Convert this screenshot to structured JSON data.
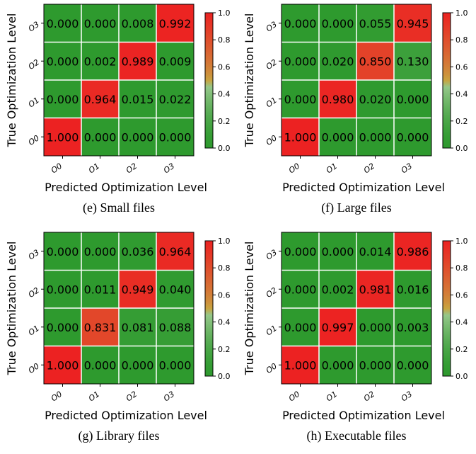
{
  "chart_data": [
    {
      "type": "heatmap",
      "caption": "(e) Small files",
      "xlabel": "Predicted Optimization Level",
      "ylabel": "True Optimization Level",
      "x_categories": [
        "O0",
        "O1",
        "O2",
        "O3"
      ],
      "y_categories": [
        "O3",
        "O2",
        "O1",
        "O0"
      ],
      "values": [
        [
          0.0,
          0.0,
          0.008,
          0.992
        ],
        [
          0.0,
          0.002,
          0.989,
          0.009
        ],
        [
          0.0,
          0.964,
          0.015,
          0.022
        ],
        [
          1.0,
          0.0,
          0.0,
          0.0
        ]
      ],
      "colorbar_ticks": [
        "0.0",
        "0.2",
        "0.4",
        "0.6",
        "0.8",
        "1.0"
      ],
      "vmin": 0,
      "vmax": 1
    },
    {
      "type": "heatmap",
      "caption": "(f) Large files",
      "xlabel": "Predicted Optimization Level",
      "ylabel": "True Optimization Level",
      "x_categories": [
        "O0",
        "O1",
        "O2",
        "O3"
      ],
      "y_categories": [
        "O3",
        "O2",
        "O1",
        "O0"
      ],
      "values": [
        [
          0.0,
          0.0,
          0.055,
          0.945
        ],
        [
          0.0,
          0.02,
          0.85,
          0.13
        ],
        [
          0.0,
          0.98,
          0.02,
          0.0
        ],
        [
          1.0,
          0.0,
          0.0,
          0.0
        ]
      ],
      "colorbar_ticks": [
        "0.0",
        "0.2",
        "0.4",
        "0.6",
        "0.8",
        "1.0"
      ],
      "vmin": 0,
      "vmax": 1
    },
    {
      "type": "heatmap",
      "caption": "(g) Library files",
      "xlabel": "Predicted Optimization Level",
      "ylabel": "True Optimization Level",
      "x_categories": [
        "O0",
        "O1",
        "O2",
        "O3"
      ],
      "y_categories": [
        "O3",
        "O2",
        "O1",
        "O0"
      ],
      "values": [
        [
          0.0,
          0.0,
          0.036,
          0.964
        ],
        [
          0.0,
          0.011,
          0.949,
          0.04
        ],
        [
          0.0,
          0.831,
          0.081,
          0.088
        ],
        [
          1.0,
          0.0,
          0.0,
          0.0
        ]
      ],
      "colorbar_ticks": [
        "0.0",
        "0.2",
        "0.4",
        "0.6",
        "0.8",
        "1.0"
      ],
      "vmin": 0,
      "vmax": 1
    },
    {
      "type": "heatmap",
      "caption": "(h) Executable files",
      "xlabel": "Predicted Optimization Level",
      "ylabel": "True Optimization Level",
      "x_categories": [
        "O0",
        "O1",
        "O2",
        "O3"
      ],
      "y_categories": [
        "O3",
        "O2",
        "O1",
        "O0"
      ],
      "values": [
        [
          0.0,
          0.0,
          0.014,
          0.986
        ],
        [
          0.0,
          0.002,
          0.981,
          0.016
        ],
        [
          0.0,
          0.997,
          0.0,
          0.003
        ],
        [
          1.0,
          0.0,
          0.0,
          0.0
        ]
      ],
      "colorbar_ticks": [
        "0.0",
        "0.2",
        "0.4",
        "0.6",
        "0.8",
        "1.0"
      ],
      "vmin": 0,
      "vmax": 1
    }
  ],
  "colormap": {
    "low": "#2e9a2e",
    "mid_low": "#a8cf9a",
    "mid_high": "#c8a440",
    "high": "#ec2222",
    "grid_line": "#ffffff"
  }
}
